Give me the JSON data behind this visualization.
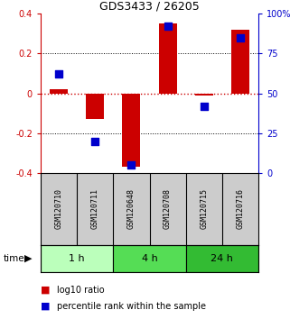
{
  "title": "GDS3433 / 26205",
  "samples": [
    "GSM120710",
    "GSM120711",
    "GSM120648",
    "GSM120708",
    "GSM120715",
    "GSM120716"
  ],
  "time_groups": [
    {
      "label": "1 h",
      "color": "#bbffbb"
    },
    {
      "label": "4 h",
      "color": "#55dd55"
    },
    {
      "label": "24 h",
      "color": "#33bb33"
    }
  ],
  "log10_ratio": [
    0.02,
    -0.13,
    -0.37,
    0.35,
    -0.01,
    0.32
  ],
  "percentile_rank": [
    62,
    20,
    5,
    92,
    42,
    85
  ],
  "ylim_left": [
    -0.4,
    0.4
  ],
  "ylim_right": [
    0,
    100
  ],
  "yticks_left": [
    -0.4,
    -0.2,
    0.0,
    0.2,
    0.4
  ],
  "yticks_right": [
    0,
    25,
    50,
    75,
    100
  ],
  "bar_color": "#cc0000",
  "dot_color": "#0000cc",
  "bar_width": 0.5,
  "dot_size": 40,
  "left_axis_color": "#cc0000",
  "right_axis_color": "#0000cc",
  "bg_color": "#ffffff",
  "label_bg": "#cccccc",
  "grid_dotted_color": "#555555"
}
